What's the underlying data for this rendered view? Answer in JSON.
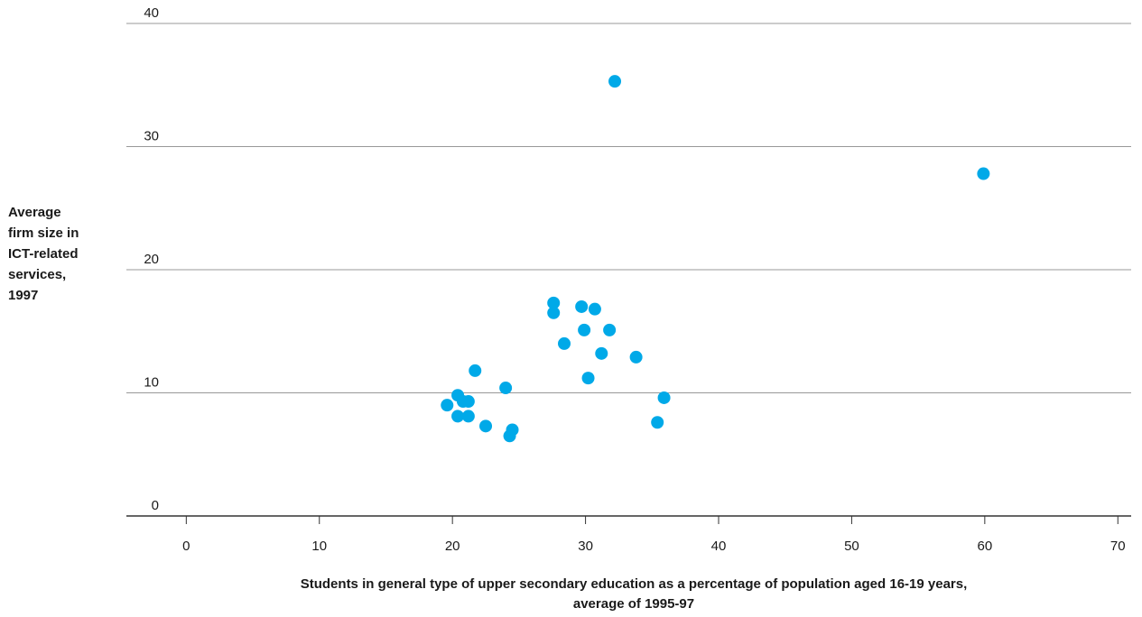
{
  "chart_data": {
    "type": "scatter",
    "title": "",
    "xlabel_lines": [
      "Students in general type of upper secondary education as a percentage of population aged 16-19 years,",
      "average of 1995-97"
    ],
    "ylabel_lines": [
      "Average",
      "firm size in",
      "ICT-related",
      "services,",
      "1997"
    ],
    "xlim": [
      -4.5,
      71
    ],
    "ylim": [
      0,
      40
    ],
    "xticks": [
      0,
      10,
      20,
      30,
      40,
      50,
      60,
      70
    ],
    "yticks": [
      0,
      10,
      20,
      30,
      40
    ],
    "grid": "horizontal",
    "point_color": "#00a9e8",
    "gridline_color": "#999999",
    "series": [
      {
        "points": [
          [
            19.6,
            9.0
          ],
          [
            20.4,
            9.8
          ],
          [
            20.4,
            8.1
          ],
          [
            20.8,
            9.3
          ],
          [
            21.2,
            9.3
          ],
          [
            21.2,
            8.1
          ],
          [
            21.7,
            11.8
          ],
          [
            22.5,
            7.3
          ],
          [
            24.0,
            10.4
          ],
          [
            24.3,
            6.5
          ],
          [
            24.5,
            7.0
          ],
          [
            27.6,
            17.3
          ],
          [
            27.6,
            16.5
          ],
          [
            28.4,
            14.0
          ],
          [
            29.7,
            17.0
          ],
          [
            29.9,
            15.1
          ],
          [
            30.2,
            11.2
          ],
          [
            30.7,
            16.8
          ],
          [
            31.2,
            13.2
          ],
          [
            31.8,
            15.1
          ],
          [
            32.2,
            35.3
          ],
          [
            33.8,
            12.9
          ],
          [
            35.4,
            7.6
          ],
          [
            35.9,
            9.6
          ],
          [
            59.9,
            27.8
          ]
        ]
      }
    ]
  }
}
